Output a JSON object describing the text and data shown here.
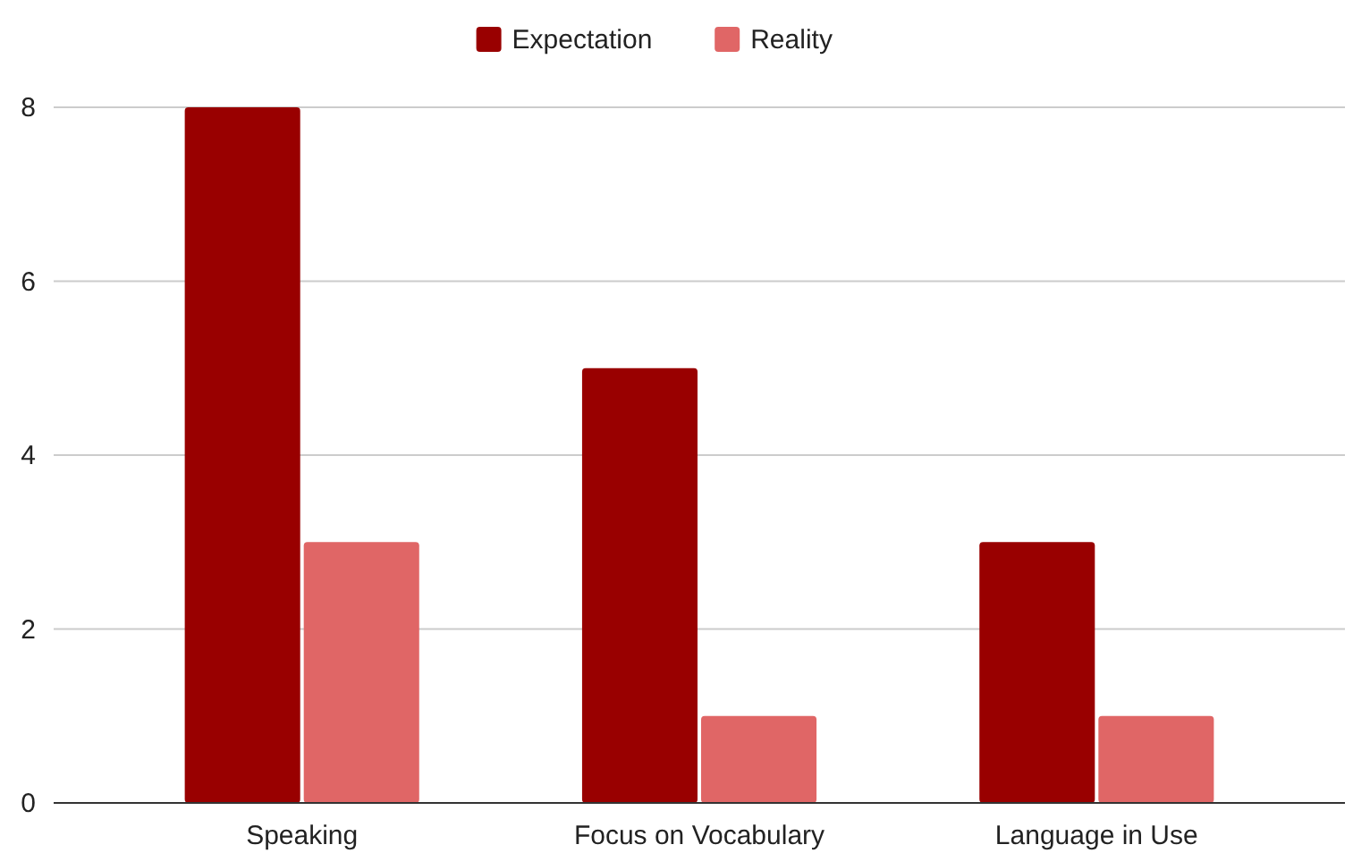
{
  "chart_data": {
    "type": "bar",
    "categories": [
      "Speaking",
      "Focus on Vocabulary",
      "Language in Use"
    ],
    "series": [
      {
        "name": "Expectation",
        "color": "#990000",
        "values": [
          8,
          5,
          3
        ]
      },
      {
        "name": "Reality",
        "color": "#e06666",
        "values": [
          3,
          1,
          1
        ]
      }
    ],
    "ylim": [
      0,
      8
    ],
    "yticks": [
      0,
      2,
      4,
      6,
      8
    ],
    "grid": "y",
    "legend": "top"
  }
}
